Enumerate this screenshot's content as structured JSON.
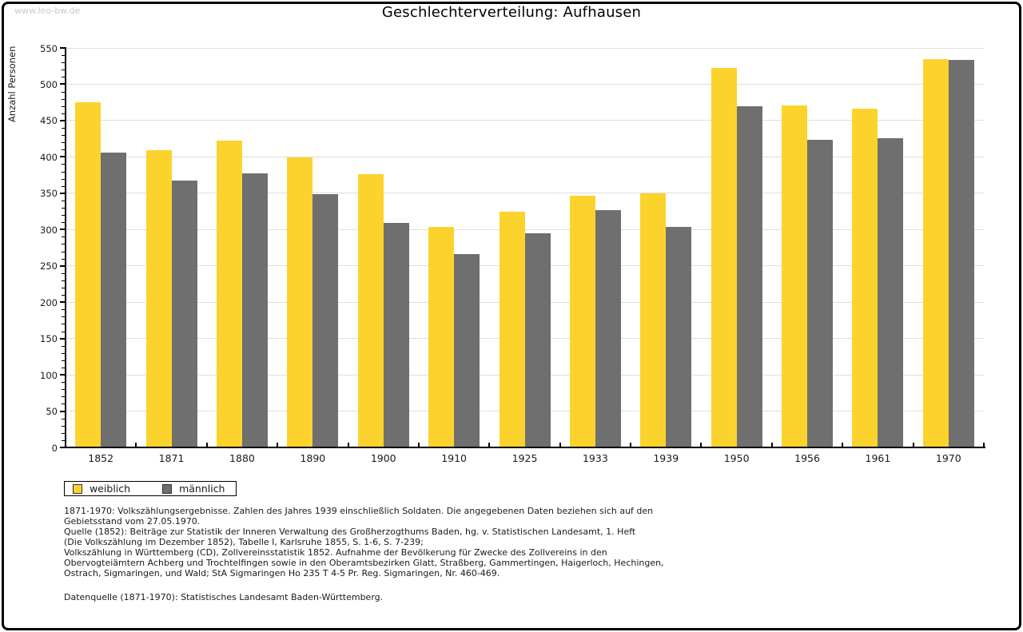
{
  "watermark": "www.leo-bw.de",
  "title": "Geschlechterverteilung: Aufhausen",
  "chart_data": {
    "type": "bar",
    "title": "Geschlechterverteilung: Aufhausen",
    "xlabel": "",
    "ylabel": "Anzahl Personen",
    "ylim": [
      0,
      550
    ],
    "ytick_step": 50,
    "ytick_minor_step": 10,
    "grid": true,
    "legend_position": "bottom-left",
    "categories": [
      "1852",
      "1871",
      "1880",
      "1890",
      "1900",
      "1910",
      "1925",
      "1933",
      "1939",
      "1950",
      "1956",
      "1961",
      "1970"
    ],
    "series": [
      {
        "name": "weiblich",
        "color": "#FCD32D",
        "values": [
          475,
          409,
          422,
          399,
          376,
          304,
          325,
          346,
          350,
          523,
          471,
          466,
          535
        ]
      },
      {
        "name": "männlich",
        "color": "#6F6F6F",
        "values": [
          406,
          367,
          377,
          349,
          309,
          266,
          295,
          327,
          304,
          470,
          424,
          426,
          534
        ]
      }
    ]
  },
  "footnotes": {
    "lines": [
      "1871-1970: Volkszählungsergebnisse. Zahlen des Jahres 1939 einschließlich Soldaten. Die angegebenen Daten beziehen sich auf den",
      "Gebietsstand vom 27.05.1970.",
      "Quelle (1852): Beiträge zur Statistik der Inneren Verwaltung des Großherzogthums Baden, hg. v. Statistischen Landesamt, 1. Heft",
      "(Die Volkszählung im Dezember 1852), Tabelle I, Karlsruhe 1855, S. 1-6, S. 7-239;",
      "Volkszählung in Württemberg (CD), Zollvereinsstatistik 1852. Aufnahme der Bevölkerung für Zwecke des Zollvereins in den",
      "Obervogteiämtern Achberg und Trochtelfingen sowie in den Oberamtsbezirken Glatt, Straßberg, Gammertingen, Haigerloch, Hechingen,",
      "Ostrach, Sigmaringen, und Wald; StA Sigmaringen Ho 235 T 4-5 Pr. Reg. Sigmaringen, Nr. 460-469."
    ],
    "datasource": "Datenquelle (1871-1970): Statistisches Landesamt Baden-Württemberg."
  },
  "colors": {
    "female_bar": "#FCD32D",
    "male_bar": "#6F6F6F",
    "gridline": "#DEDEDE",
    "axis": "#000000",
    "watermark": "#C9C9C9",
    "frame_border": "#000000",
    "background": "#FFFFFF"
  }
}
